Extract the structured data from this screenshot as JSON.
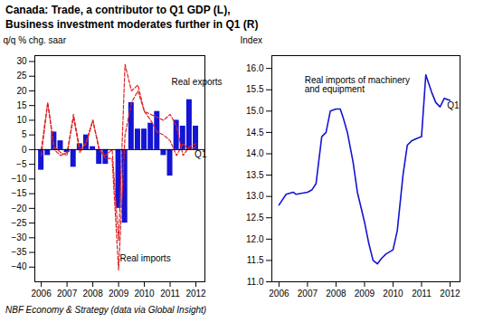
{
  "title": "Canada: Trade, a contributor to Q1 GDP (L),\nBusiness investment moderates further in Q1 (R)",
  "caption": "NBF Economy & Strategy (data via Global Insight)",
  "chart_data": [
    {
      "type": "bar",
      "ylabel": "q/q % chg. saar",
      "x": [
        2006.0,
        2006.25,
        2006.5,
        2006.75,
        2007.0,
        2007.25,
        2007.5,
        2007.75,
        2008.0,
        2008.25,
        2008.5,
        2008.75,
        2009.0,
        2009.25,
        2009.5,
        2009.75,
        2010.0,
        2010.25,
        2010.5,
        2010.75,
        2011.0,
        2011.25,
        2011.5,
        2011.75,
        2012.0
      ],
      "series": [
        {
          "type": "bar",
          "color": "#1414d4",
          "values": [
            -7,
            -2,
            6,
            3,
            -1,
            -6,
            2,
            5,
            1,
            -5,
            -5,
            0,
            -20,
            -25,
            16,
            7,
            7,
            9,
            13,
            -2,
            -9,
            10,
            8,
            17,
            8
          ]
        },
        {
          "type": "line",
          "color": "#dd2222",
          "line_style": "dashed",
          "values": [
            -2,
            16,
            0,
            -2,
            -1,
            11,
            -1,
            3,
            10,
            0,
            -2,
            0,
            -31,
            29,
            20,
            22,
            13,
            12,
            11,
            10,
            12,
            8,
            -2,
            1,
            2
          ]
        },
        {
          "type": "line",
          "color": "#dd2222",
          "line_style": "dashed",
          "values": [
            0,
            16,
            1,
            -1,
            -2,
            12,
            0,
            2,
            10,
            0,
            -3,
            -3,
            -41,
            5,
            16,
            20,
            13,
            10,
            6,
            5,
            3,
            -2,
            2,
            0,
            1
          ]
        }
      ],
      "xlim": [
        2005.75,
        2012.35
      ],
      "xticks": [
        2006,
        2007,
        2008,
        2009,
        2010,
        2011,
        2012
      ],
      "ylim": [
        -45,
        32
      ],
      "yticks": [
        -40,
        -35,
        -30,
        -25,
        -20,
        -15,
        -10,
        -5,
        0,
        5,
        10,
        15,
        20,
        25,
        30
      ],
      "grid": false,
      "annotations": [
        {
          "text": "Real exports",
          "x": 2011.05,
          "y": 22
        },
        {
          "text": "Real imports",
          "x": 2009.05,
          "y": -38
        },
        {
          "text": "Q1",
          "x": 2011.95,
          "y": -2.5
        }
      ]
    },
    {
      "type": "line",
      "ylabel": "Index",
      "x": [
        2006.0,
        2006.25,
        2006.5,
        2006.6,
        2007.0,
        2007.15,
        2007.3,
        2007.5,
        2007.65,
        2007.8,
        2008.0,
        2008.15,
        2008.25,
        2008.4,
        2008.6,
        2008.75,
        2009.0,
        2009.15,
        2009.3,
        2009.45,
        2009.6,
        2009.75,
        2010.0,
        2010.15,
        2010.35,
        2010.5,
        2010.65,
        2010.8,
        2011.0,
        2011.15,
        2011.35,
        2011.5,
        2011.65,
        2011.8,
        2012.0
      ],
      "series": [
        {
          "type": "line",
          "color": "#1414d4",
          "values": [
            12.8,
            13.05,
            13.1,
            13.05,
            13.1,
            13.15,
            13.3,
            14.4,
            14.5,
            15.0,
            15.05,
            15.05,
            14.85,
            14.5,
            13.8,
            13.1,
            12.4,
            11.9,
            11.5,
            11.42,
            11.55,
            11.65,
            11.75,
            12.2,
            13.5,
            14.2,
            14.3,
            14.35,
            14.4,
            15.85,
            15.45,
            15.2,
            15.1,
            15.3,
            15.25
          ]
        }
      ],
      "xlim": [
        2005.75,
        2012.35
      ],
      "xticks": [
        2006,
        2007,
        2008,
        2009,
        2010,
        2011,
        2012
      ],
      "ylim": [
        11.0,
        16.3
      ],
      "yticks": [
        {
          "value": 11.0,
          "label": "11.0"
        },
        11.5,
        {
          "value": 12.0,
          "label": "12.0"
        },
        12.5,
        {
          "value": 13.0,
          "label": "13.0"
        },
        13.5,
        {
          "value": 14.0,
          "label": "14.0"
        },
        14.5,
        {
          "value": 15.0,
          "label": "15.0"
        },
        15.5,
        {
          "value": 16.0,
          "label": "16.0"
        }
      ],
      "grid": false,
      "annotations": [
        {
          "text": "Real imports of machinery\nand equipment",
          "x": 2006.9,
          "y": 15.45
        },
        {
          "text": "Q1",
          "x": 2011.9,
          "y": 15.05
        }
      ]
    }
  ]
}
